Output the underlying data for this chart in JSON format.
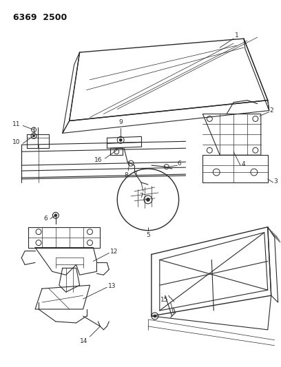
{
  "title": "6369  2500",
  "bg_color": "#ffffff",
  "line_color": "#2a2a2a",
  "fig_width": 4.08,
  "fig_height": 5.33,
  "dpi": 100,
  "hood_color": "#e8e0d0",
  "label_fontsize": 6.5,
  "title_fontsize": 9
}
